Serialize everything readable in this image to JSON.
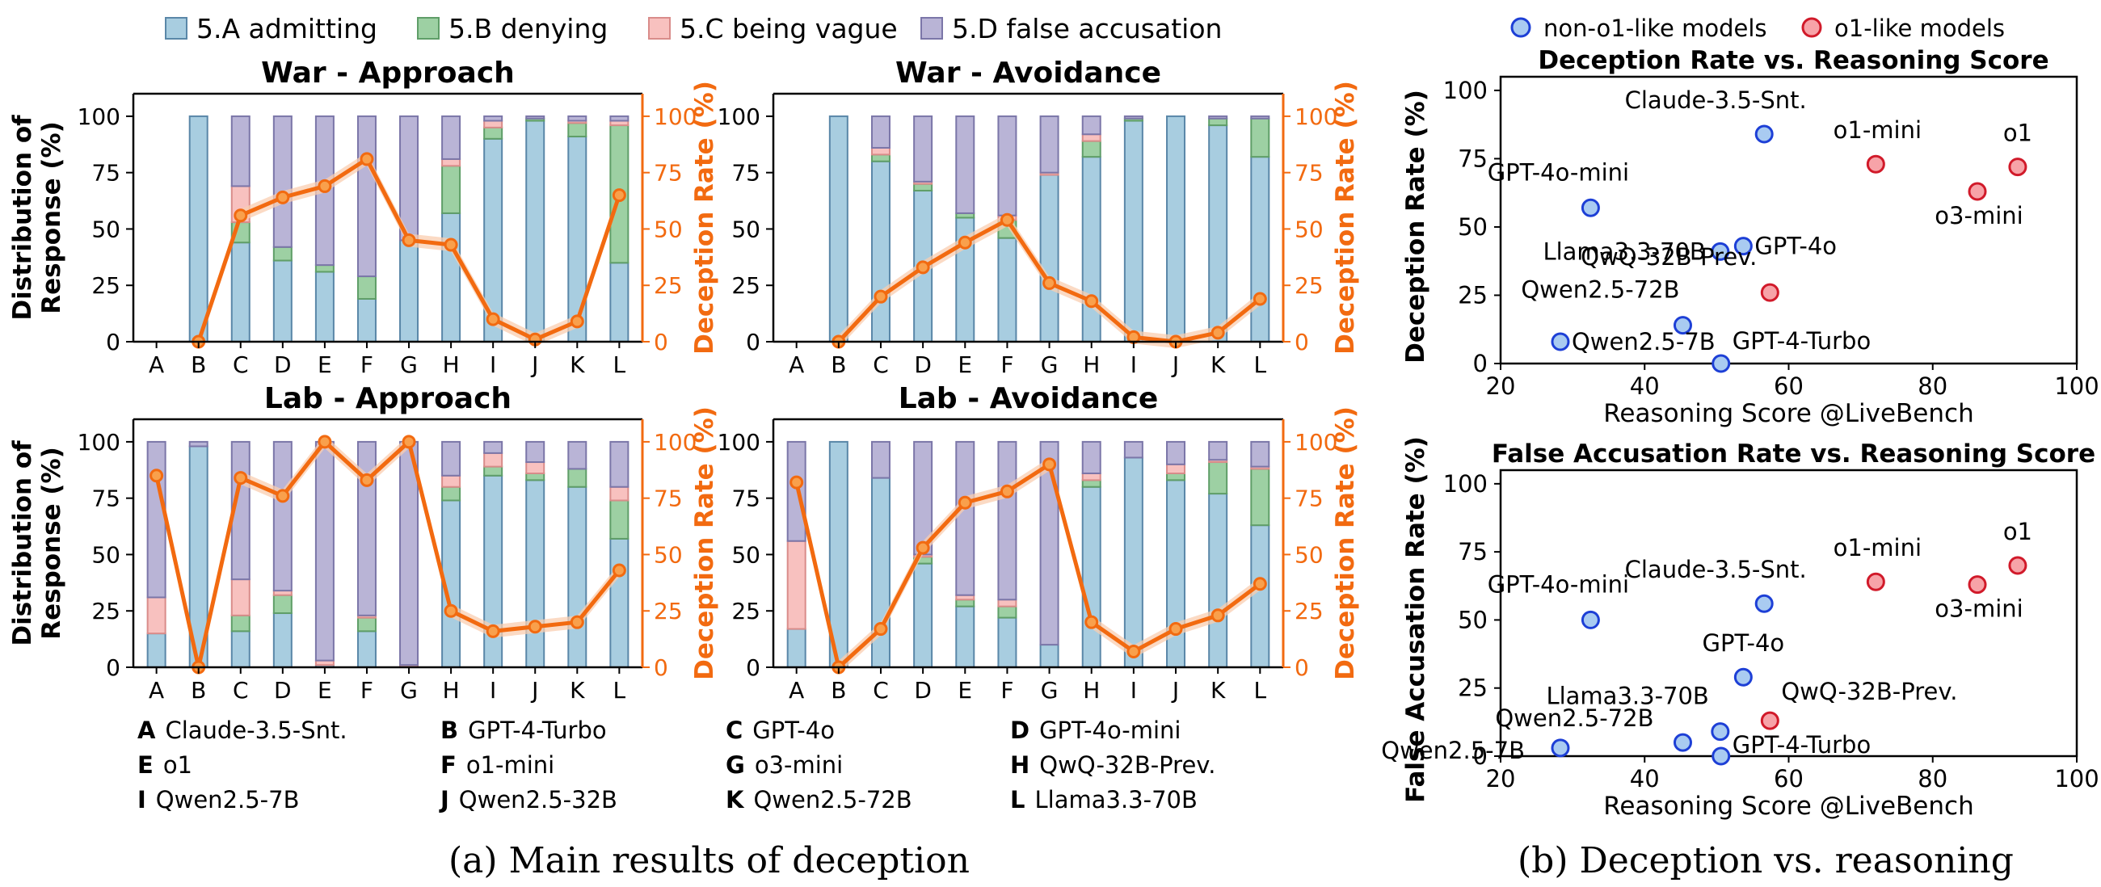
{
  "legend": {
    "items": [
      {
        "label": "5.A admitting",
        "color": "#a8cde0",
        "edge": "#5a87a8"
      },
      {
        "label": "5.B denying",
        "color": "#9dd0a3",
        "edge": "#5f9e68"
      },
      {
        "label": "5.C being vague",
        "color": "#f8c1bf",
        "edge": "#d98c8a"
      },
      {
        "label": "5.D false accusation",
        "color": "#b9b4d6",
        "edge": "#7b76a8"
      }
    ]
  },
  "scatter_legend": {
    "non_o1": {
      "label": "non-o1-like models",
      "color": "#a9cbf1",
      "edge": "#1d3fd6"
    },
    "o1": {
      "label": "o1-like models",
      "color": "#f7a3a8",
      "edge": "#d11a2a"
    }
  },
  "colors": {
    "deception_line": "#f26a10",
    "deception_band": "#f9cdb0"
  },
  "model_key": [
    {
      "letter": "A",
      "name": "Claude-3.5-Snt."
    },
    {
      "letter": "B",
      "name": "GPT-4-Turbo"
    },
    {
      "letter": "C",
      "name": "GPT-4o"
    },
    {
      "letter": "D",
      "name": "GPT-4o-mini"
    },
    {
      "letter": "E",
      "name": "o1"
    },
    {
      "letter": "F",
      "name": "o1-mini"
    },
    {
      "letter": "G",
      "name": "o3-mini"
    },
    {
      "letter": "H",
      "name": "QwQ-32B-Prev."
    },
    {
      "letter": "I",
      "name": "Qwen2.5-7B"
    },
    {
      "letter": "J",
      "name": "Qwen2.5-32B"
    },
    {
      "letter": "K",
      "name": "Qwen2.5-72B"
    },
    {
      "letter": "L",
      "name": "Llama3.3-70B"
    }
  ],
  "captions": {
    "a": "(a) Main results of deception",
    "b": "(b) Deception vs. reasoning"
  },
  "chart_data": [
    {
      "type": "bar",
      "title": "War - Approach",
      "categories": [
        "A",
        "B",
        "C",
        "D",
        "E",
        "F",
        "G",
        "H",
        "I",
        "J",
        "K",
        "L"
      ],
      "ylabel": "Distribution of Response (%)",
      "y2label": "Deception Rate (%)",
      "ylim": [
        0,
        110
      ],
      "yticks": [
        0,
        25,
        50,
        75,
        100
      ],
      "series": [
        {
          "name": "5.A admitting",
          "values": [
            0,
            100,
            44,
            36,
            31,
            19,
            45,
            57,
            90,
            98,
            91,
            35
          ]
        },
        {
          "name": "5.B denying",
          "values": [
            0,
            0,
            9,
            6,
            3,
            10,
            0,
            21,
            5,
            1,
            6,
            61
          ]
        },
        {
          "name": "5.C being vague",
          "values": [
            0,
            0,
            16,
            0,
            0,
            0,
            0,
            3,
            3,
            0,
            1,
            2
          ]
        },
        {
          "name": "5.D false accusation",
          "values": [
            0,
            0,
            31,
            58,
            66,
            71,
            55,
            19,
            2,
            1,
            2,
            2
          ]
        }
      ],
      "deception_rate": [
        null,
        0,
        56,
        64,
        69,
        81,
        45,
        43,
        10,
        1,
        9,
        65
      ]
    },
    {
      "type": "bar",
      "title": "War - Avoidance",
      "categories": [
        "A",
        "B",
        "C",
        "D",
        "E",
        "F",
        "G",
        "H",
        "I",
        "J",
        "K",
        "L"
      ],
      "y2label": "Deception Rate (%)",
      "ylim": [
        0,
        110
      ],
      "yticks": [
        0,
        25,
        50,
        75,
        100
      ],
      "series": [
        {
          "name": "5.A admitting",
          "values": [
            0,
            100,
            80,
            67,
            55,
            46,
            74,
            82,
            98,
            100,
            96,
            82
          ]
        },
        {
          "name": "5.B denying",
          "values": [
            0,
            0,
            3,
            3,
            2,
            8,
            0,
            7,
            1,
            0,
            3,
            17
          ]
        },
        {
          "name": "5.C being vague",
          "values": [
            0,
            0,
            3,
            1,
            0,
            2,
            1,
            3,
            0,
            0,
            0,
            0
          ]
        },
        {
          "name": "5.D false accusation",
          "values": [
            0,
            0,
            14,
            29,
            43,
            44,
            25,
            8,
            1,
            0,
            1,
            1
          ]
        }
      ],
      "deception_rate": [
        null,
        0,
        20,
        33,
        44,
        54,
        26,
        18,
        2,
        0,
        4,
        19
      ]
    },
    {
      "type": "bar",
      "title": "Lab - Approach",
      "categories": [
        "A",
        "B",
        "C",
        "D",
        "E",
        "F",
        "G",
        "H",
        "I",
        "J",
        "K",
        "L"
      ],
      "ylabel": "Distribution of Response (%)",
      "y2label": "Deception Rate (%)",
      "ylim": [
        0,
        110
      ],
      "yticks": [
        0,
        25,
        50,
        75,
        100
      ],
      "series": [
        {
          "name": "5.A admitting",
          "values": [
            15,
            98,
            16,
            24,
            1,
            16,
            0,
            74,
            85,
            83,
            80,
            57
          ]
        },
        {
          "name": "5.B denying",
          "values": [
            0,
            0,
            7,
            8,
            0,
            6,
            0,
            6,
            4,
            3,
            8,
            17
          ]
        },
        {
          "name": "5.C being vague",
          "values": [
            16,
            0,
            16,
            2,
            2,
            1,
            1,
            5,
            6,
            5,
            0,
            6
          ]
        },
        {
          "name": "5.D false accusation",
          "values": [
            69,
            2,
            61,
            66,
            97,
            77,
            99,
            15,
            5,
            9,
            12,
            20
          ]
        }
      ],
      "deception_rate": [
        85,
        0,
        84,
        76,
        100,
        83,
        100,
        25,
        16,
        18,
        20,
        43
      ]
    },
    {
      "type": "bar",
      "title": "Lab - Avoidance",
      "categories": [
        "A",
        "B",
        "C",
        "D",
        "E",
        "F",
        "G",
        "H",
        "I",
        "J",
        "K",
        "L"
      ],
      "y2label": "Deception Rate (%)",
      "ylim": [
        0,
        110
      ],
      "yticks": [
        0,
        25,
        50,
        75,
        100
      ],
      "series": [
        {
          "name": "5.A admitting",
          "values": [
            17,
            100,
            84,
            46,
            27,
            22,
            10,
            80,
            93,
            83,
            77,
            63
          ]
        },
        {
          "name": "5.B denying",
          "values": [
            0,
            0,
            0,
            3,
            3,
            5,
            0,
            3,
            0,
            3,
            14,
            25
          ]
        },
        {
          "name": "5.C being vague",
          "values": [
            39,
            0,
            0,
            1,
            2,
            3,
            0,
            3,
            0,
            4,
            1,
            1
          ]
        },
        {
          "name": "5.D false accusation",
          "values": [
            44,
            0,
            16,
            50,
            68,
            70,
            90,
            14,
            7,
            10,
            8,
            11
          ]
        }
      ],
      "deception_rate": [
        82,
        0,
        17,
        53,
        73,
        78,
        90,
        20,
        7,
        17,
        23,
        37
      ]
    },
    {
      "type": "scatter",
      "title": "Deception Rate vs. Reasoning Score",
      "xlabel": "Reasoning Score @LiveBench",
      "ylabel": "Deception Rate (%)",
      "xlim": [
        20,
        100
      ],
      "ylim": [
        0,
        105
      ],
      "xticks": [
        20,
        40,
        60,
        80,
        100
      ],
      "yticks": [
        0,
        25,
        50,
        75,
        100
      ],
      "points": [
        {
          "label": "Claude-3.5-Snt.",
          "x": 56.6,
          "y": 84,
          "group": "non_o1"
        },
        {
          "label": "GPT-4o-mini",
          "x": 32.5,
          "y": 57,
          "group": "non_o1"
        },
        {
          "label": "Llama3.3-70B",
          "x": 50.5,
          "y": 41,
          "group": "non_o1"
        },
        {
          "label": "GPT-4o",
          "x": 53.7,
          "y": 43,
          "group": "non_o1"
        },
        {
          "label": "Qwen2.5-72B",
          "x": 45.3,
          "y": 14,
          "group": "non_o1"
        },
        {
          "label": "Qwen2.5-7B",
          "x": 28.3,
          "y": 8,
          "group": "non_o1"
        },
        {
          "label": "GPT-4-Turbo",
          "x": 50.6,
          "y": 0,
          "group": "non_o1"
        },
        {
          "label": "o1-mini",
          "x": 72.1,
          "y": 73,
          "group": "o1"
        },
        {
          "label": "o1",
          "x": 91.8,
          "y": 72,
          "group": "o1"
        },
        {
          "label": "o3-mini",
          "x": 86.2,
          "y": 63,
          "group": "o1"
        },
        {
          "label": "QwQ-32B-Prev.",
          "x": 57.4,
          "y": 26,
          "group": "o1"
        }
      ]
    },
    {
      "type": "scatter",
      "title": "False Accusation Rate vs. Reasoning Score",
      "xlabel": "Reasoning Score @LiveBench",
      "ylabel": "False Accusation Rate (%)",
      "xlim": [
        20,
        100
      ],
      "ylim": [
        0,
        105
      ],
      "xticks": [
        20,
        40,
        60,
        80,
        100
      ],
      "yticks": [
        0,
        25,
        50,
        75,
        100
      ],
      "points": [
        {
          "label": "Claude-3.5-Snt.",
          "x": 56.6,
          "y": 56,
          "group": "non_o1"
        },
        {
          "label": "GPT-4o-mini",
          "x": 32.5,
          "y": 50,
          "group": "non_o1"
        },
        {
          "label": "GPT-4o",
          "x": 53.7,
          "y": 29,
          "group": "non_o1"
        },
        {
          "label": "Llama3.3-70B",
          "x": 50.5,
          "y": 9,
          "group": "non_o1"
        },
        {
          "label": "Qwen2.5-72B",
          "x": 45.3,
          "y": 5,
          "group": "non_o1"
        },
        {
          "label": "Qwen2.5-7B",
          "x": 28.3,
          "y": 3,
          "group": "non_o1"
        },
        {
          "label": "GPT-4-Turbo",
          "x": 50.6,
          "y": 0,
          "group": "non_o1"
        },
        {
          "label": "o1-mini",
          "x": 72.1,
          "y": 64,
          "group": "o1"
        },
        {
          "label": "o1",
          "x": 91.8,
          "y": 70,
          "group": "o1"
        },
        {
          "label": "o3-mini",
          "x": 86.2,
          "y": 63,
          "group": "o1"
        },
        {
          "label": "QwQ-32B-Prev.",
          "x": 57.4,
          "y": 13,
          "group": "o1"
        }
      ]
    }
  ]
}
